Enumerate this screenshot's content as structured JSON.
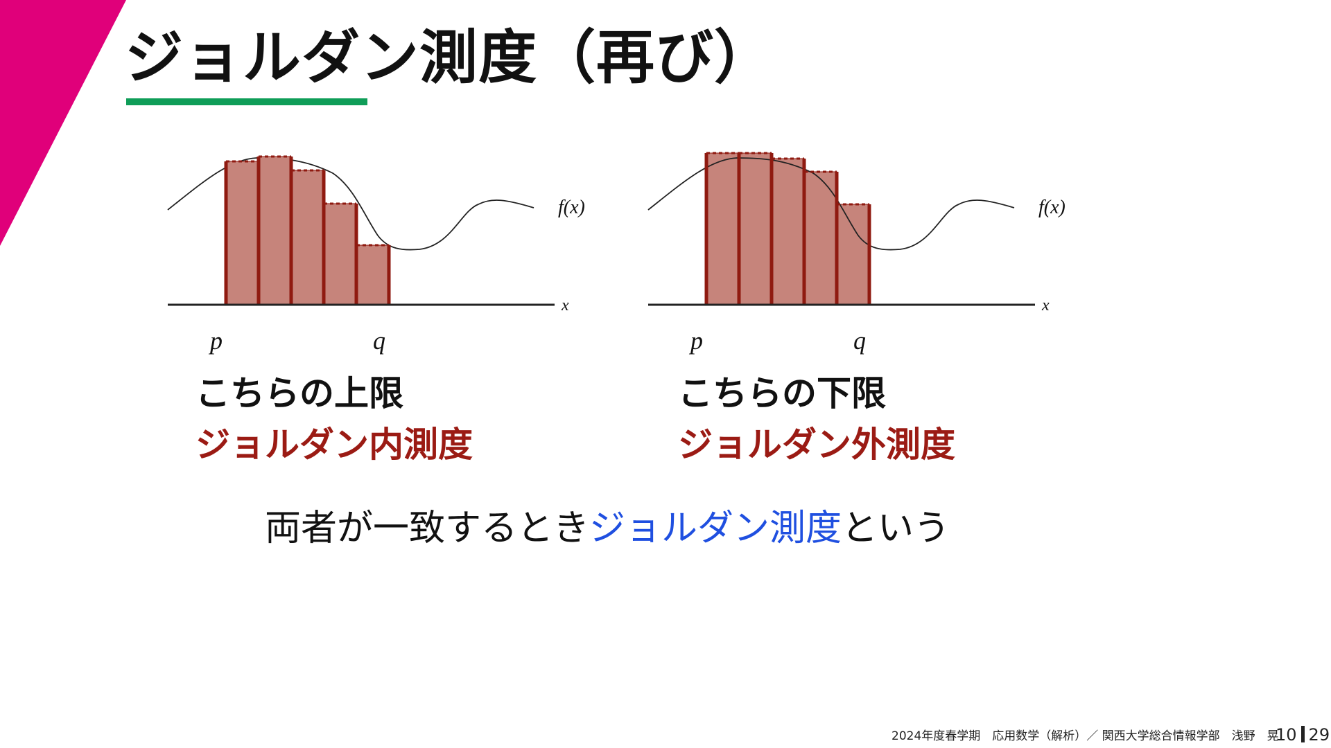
{
  "slide": {
    "title": "ジョルダン測度（再び）",
    "accent_color": "#e0007a",
    "underline_color": "#0f9d58"
  },
  "figures": [
    {
      "axis_x_label": "x",
      "function_label": "f(x)",
      "p_label": "p",
      "q_label": "q",
      "caption_line1": "こちらの上限",
      "caption_line2": "ジョルダン内測度"
    },
    {
      "axis_x_label": "x",
      "function_label": "f(x)",
      "p_label": "p",
      "q_label": "q",
      "caption_line1": "こちらの下限",
      "caption_line2": "ジョルダン外測度"
    }
  ],
  "bottom": {
    "text_before": "両者が一致するとき",
    "text_highlight": "ジョルダン測度",
    "text_after": "という"
  },
  "footer": {
    "text": "2024年度春学期　応用数学（解析）／ 関西大学総合情報学部　浅野　晃",
    "page_current": "10",
    "page_total": "29"
  },
  "colors": {
    "bar_fill": "#c6847b",
    "bar_edge": "#8f1a10",
    "caption_red": "#9b1b14",
    "highlight_blue": "#1f4fe0"
  }
}
